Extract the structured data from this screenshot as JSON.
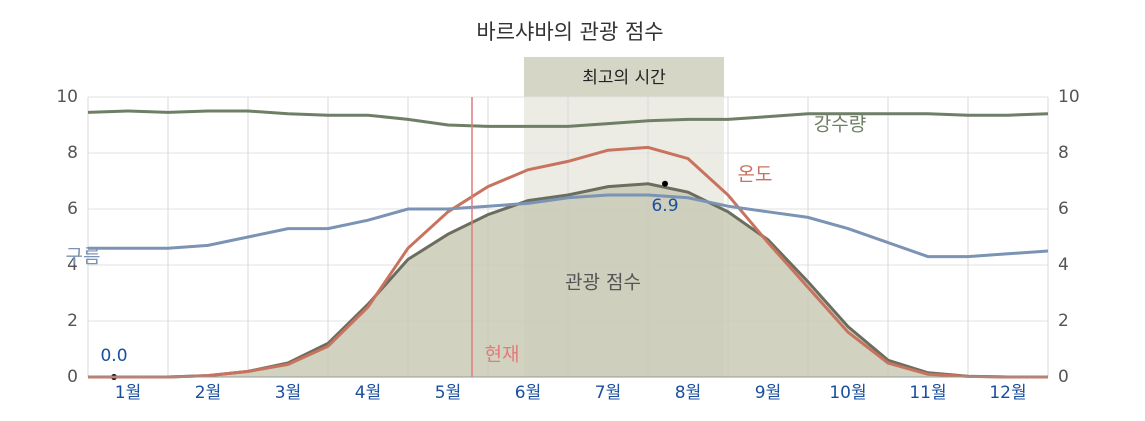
{
  "chart_data": {
    "type": "line",
    "title": "바르샤바의 관광 점수",
    "categories": [
      null,
      "1월",
      null,
      "2월",
      null,
      "3월",
      null,
      "4월",
      null,
      "5월",
      null,
      "6월",
      null,
      "7월",
      null,
      "8월",
      null,
      "9월",
      null,
      "10월",
      null,
      "11월",
      null,
      "12월",
      null
    ],
    "series": [
      {
        "name": "관광 점수",
        "color": "#6b6d5e",
        "fill": "#c9cab5",
        "values": [
          0,
          0,
          0,
          0.05,
          0.2,
          0.5,
          1.2,
          2.6,
          4.2,
          5.1,
          5.8,
          6.3,
          6.5,
          6.8,
          6.9,
          6.6,
          5.9,
          4.9,
          3.4,
          1.8,
          0.6,
          0.15,
          0.03,
          0,
          0
        ],
        "value_labels": [
          "0.0",
          null,
          null,
          null,
          null,
          null,
          null,
          null,
          null,
          null,
          null,
          null,
          null,
          null,
          "6.9",
          null,
          null,
          null,
          null,
          null,
          null,
          null,
          null,
          null,
          null
        ]
      },
      {
        "name": "온도",
        "color": "#c8735f",
        "values": [
          0,
          0,
          0,
          0.05,
          0.2,
          0.45,
          1.1,
          2.5,
          4.6,
          5.9,
          6.8,
          7.4,
          7.7,
          8.1,
          8.2,
          7.8,
          6.5,
          4.8,
          3.2,
          1.6,
          0.5,
          0.1,
          0.02,
          0,
          0
        ]
      },
      {
        "name": "강수량",
        "color": "#6e7f66",
        "values": [
          9.45,
          9.5,
          9.45,
          9.5,
          9.5,
          9.4,
          9.35,
          9.35,
          9.2,
          9.0,
          8.95,
          8.95,
          8.95,
          9.05,
          9.15,
          9.2,
          9.2,
          9.3,
          9.4,
          9.4,
          9.4,
          9.4,
          9.35,
          9.35,
          9.4
        ]
      },
      {
        "name": "구름",
        "color": "#7b93b4",
        "values": [
          4.6,
          4.6,
          4.6,
          4.7,
          5.0,
          5.3,
          5.3,
          5.6,
          6.0,
          6.0,
          6.1,
          6.2,
          6.4,
          6.5,
          6.5,
          6.4,
          6.1,
          5.9,
          5.7,
          5.3,
          4.8,
          4.3,
          4.3,
          4.4,
          4.5
        ]
      }
    ],
    "ylim": [
      0,
      10
    ],
    "yticks": [
      0,
      2,
      4,
      6,
      8,
      10
    ],
    "y2lim": [
      0,
      10
    ],
    "y2ticks": [
      0,
      2,
      4,
      6,
      8,
      10
    ],
    "grid": true,
    "now_marker": {
      "label": "현재",
      "position": 9.6
    },
    "best_period": {
      "label": "최고의 시간",
      "range": [
        10.9,
        15.9
      ]
    }
  }
}
